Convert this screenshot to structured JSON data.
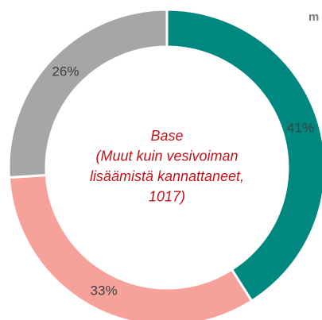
{
  "chart_data": {
    "type": "donut",
    "values": [
      41,
      33,
      26
    ],
    "value_labels": [
      "41%",
      "33%",
      "26%"
    ],
    "colors": [
      "#00877f",
      "#f6a29a",
      "#a6a6a6"
    ],
    "center_text": [
      "Base",
      "(Muut kuin vesivoiman",
      "lisäämistä kannattaneet,",
      "1017)"
    ],
    "corner_text": "m"
  }
}
